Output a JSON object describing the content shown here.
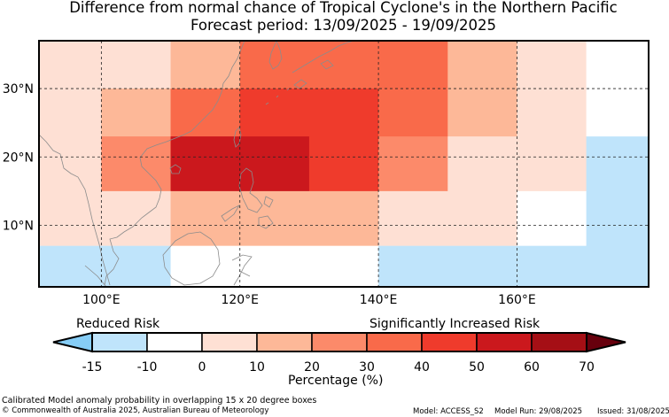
{
  "title": {
    "line1": "Difference from normal chance of Tropical Cyclone's in the Northern Pacific",
    "line2": "Forecast period: 13/09/2025 - 19/09/2025"
  },
  "map": {
    "lon_range": [
      91,
      179
    ],
    "lat_range": [
      1,
      37
    ],
    "lon_ticks": [
      {
        "value": 100,
        "label": "100°E"
      },
      {
        "value": 120,
        "label": "120°E"
      },
      {
        "value": 140,
        "label": "140°E"
      },
      {
        "value": 160,
        "label": "160°E"
      }
    ],
    "lat_ticks": [
      {
        "value": 10,
        "label": "10°N"
      },
      {
        "value": 20,
        "label": "20°N"
      },
      {
        "value": 30,
        "label": "30°N"
      }
    ],
    "cells": [
      {
        "lon": [
          91,
          100
        ],
        "lat": [
          30,
          37
        ],
        "pct": 0
      },
      {
        "lon": [
          100,
          110
        ],
        "lat": [
          30,
          37
        ],
        "pct": 5
      },
      {
        "lon": [
          110,
          120
        ],
        "lat": [
          30,
          37
        ],
        "pct": 15
      },
      {
        "lon": [
          120,
          140
        ],
        "lat": [
          30,
          37
        ],
        "pct": 35
      },
      {
        "lon": [
          140,
          150
        ],
        "lat": [
          30,
          37
        ],
        "pct": 35
      },
      {
        "lon": [
          150,
          160
        ],
        "lat": [
          30,
          37
        ],
        "pct": 15
      },
      {
        "lon": [
          160,
          170
        ],
        "lat": [
          30,
          37
        ],
        "pct": 0
      },
      {
        "lon": [
          170,
          179
        ],
        "lat": [
          30,
          37
        ],
        "pct": -5
      },
      {
        "lon": [
          91,
          100
        ],
        "lat": [
          28,
          30
        ],
        "pct": 5
      },
      {
        "lon": [
          100,
          110
        ],
        "lat": [
          28,
          30
        ],
        "pct": 15
      },
      {
        "lon": [
          110,
          120
        ],
        "lat": [
          28,
          30
        ],
        "pct": 35
      },
      {
        "lon": [
          120,
          140
        ],
        "lat": [
          28,
          30
        ],
        "pct": 45
      },
      {
        "lon": [
          140,
          150
        ],
        "lat": [
          28,
          30
        ],
        "pct": 35
      },
      {
        "lon": [
          150,
          160
        ],
        "lat": [
          28,
          30
        ],
        "pct": 15
      },
      {
        "lon": [
          160,
          170
        ],
        "lat": [
          28,
          30
        ],
        "pct": 0
      },
      {
        "lon": [
          170,
          179
        ],
        "lat": [
          28,
          30
        ],
        "pct": -5
      },
      {
        "lon": [
          91,
          100
        ],
        "lat": [
          23,
          28
        ],
        "pct": 5
      },
      {
        "lon": [
          100,
          110
        ],
        "lat": [
          23,
          28
        ],
        "pct": 15
      },
      {
        "lon": [
          110,
          120
        ],
        "lat": [
          23,
          28
        ],
        "pct": 35
      },
      {
        "lon": [
          120,
          140
        ],
        "lat": [
          23,
          28
        ],
        "pct": 45
      },
      {
        "lon": [
          140,
          150
        ],
        "lat": [
          23,
          28
        ],
        "pct": 35
      },
      {
        "lon": [
          150,
          160
        ],
        "lat": [
          23,
          28
        ],
        "pct": 15
      },
      {
        "lon": [
          160,
          170
        ],
        "lat": [
          23,
          28
        ],
        "pct": 0
      },
      {
        "lon": [
          170,
          179
        ],
        "lat": [
          23,
          28
        ],
        "pct": -5
      },
      {
        "lon": [
          91,
          100
        ],
        "lat": [
          15,
          23
        ],
        "pct": 5
      },
      {
        "lon": [
          100,
          110
        ],
        "lat": [
          15,
          23
        ],
        "pct": 25
      },
      {
        "lon": [
          110,
          130
        ],
        "lat": [
          15,
          23
        ],
        "pct": 55
      },
      {
        "lon": [
          130,
          140
        ],
        "lat": [
          15,
          23
        ],
        "pct": 45
      },
      {
        "lon": [
          140,
          150
        ],
        "lat": [
          15,
          23
        ],
        "pct": 25
      },
      {
        "lon": [
          150,
          160
        ],
        "lat": [
          15,
          23
        ],
        "pct": 5
      },
      {
        "lon": [
          160,
          170
        ],
        "lat": [
          15,
          23
        ],
        "pct": 0
      },
      {
        "lon": [
          170,
          179
        ],
        "lat": [
          15,
          23
        ],
        "pct": -15
      },
      {
        "lon": [
          91,
          100
        ],
        "lat": [
          7,
          15
        ],
        "pct": 0
      },
      {
        "lon": [
          100,
          110
        ],
        "lat": [
          7,
          15
        ],
        "pct": 5
      },
      {
        "lon": [
          110,
          140
        ],
        "lat": [
          7,
          15
        ],
        "pct": 15
      },
      {
        "lon": [
          140,
          150
        ],
        "lat": [
          7,
          15
        ],
        "pct": 5
      },
      {
        "lon": [
          150,
          160
        ],
        "lat": [
          7,
          15
        ],
        "pct": 0
      },
      {
        "lon": [
          160,
          170
        ],
        "lat": [
          7,
          15
        ],
        "pct": -5
      },
      {
        "lon": [
          170,
          179
        ],
        "lat": [
          7,
          15
        ],
        "pct": -15
      },
      {
        "lon": [
          91,
          110
        ],
        "lat": [
          1,
          7
        ],
        "pct": -15
      },
      {
        "lon": [
          110,
          140
        ],
        "lat": [
          1,
          7
        ],
        "pct": -5
      },
      {
        "lon": [
          140,
          179
        ],
        "lat": [
          1,
          7
        ],
        "pct": -15
      }
    ]
  },
  "colorbar": {
    "bounds": [
      -15,
      -10,
      0,
      10,
      20,
      30,
      40,
      50,
      60,
      70
    ],
    "tick_labels": [
      "-15",
      "-10",
      "0",
      "10",
      "20",
      "30",
      "40",
      "50",
      "60",
      "70"
    ],
    "colors": [
      "#bfe4fb",
      "#ffffff",
      "#fee0d4",
      "#fdb898",
      "#fc8a6a",
      "#f96a4a",
      "#ef3b2c",
      "#cb181d",
      "#a50f15"
    ],
    "under_color": "#86cdf6",
    "over_color": "#67000d",
    "reduced_label": "Reduced Risk",
    "increased_label": "Significantly Increased Risk",
    "xlabel": "Percentage (%)"
  },
  "footer": {
    "caption": "Calibrated Model anomaly probability in overlapping 15 x 20 degree boxes",
    "copyright": "© Commonwealth of Australia 2025, Australian Bureau of Meteorology",
    "model": "Model: ACCESS_S2",
    "model_run": "Model Run: 29/08/2025",
    "issued": "Issued: 31/08/2025"
  }
}
